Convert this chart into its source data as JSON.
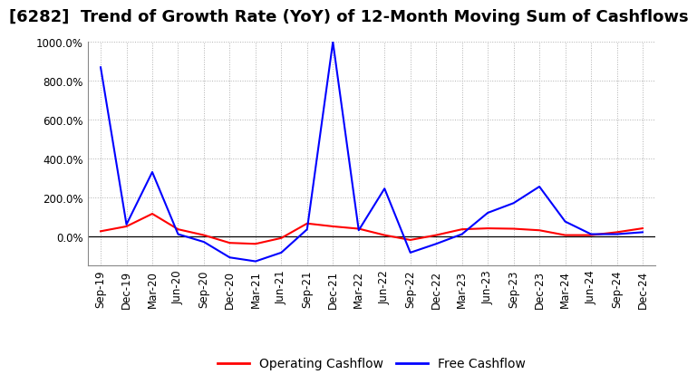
{
  "title": "[6282]  Trend of Growth Rate (YoY) of 12-Month Moving Sum of Cashflows",
  "x_labels": [
    "Sep-19",
    "Dec-19",
    "Mar-20",
    "Jun-20",
    "Sep-20",
    "Dec-20",
    "Mar-21",
    "Jun-21",
    "Sep-21",
    "Dec-21",
    "Mar-22",
    "Jun-22",
    "Sep-22",
    "Dec-22",
    "Mar-23",
    "Jun-23",
    "Sep-23",
    "Dec-23",
    "Mar-24",
    "Jun-24",
    "Sep-24",
    "Dec-24"
  ],
  "operating_cashflow": [
    25,
    50,
    115,
    35,
    5,
    -35,
    -40,
    -10,
    65,
    50,
    38,
    5,
    -20,
    5,
    35,
    40,
    38,
    30,
    5,
    5,
    20,
    40
  ],
  "free_cashflow": [
    870,
    60,
    330,
    10,
    -30,
    -110,
    -130,
    -85,
    35,
    1000,
    30,
    245,
    -85,
    -40,
    10,
    120,
    170,
    255,
    75,
    10,
    10,
    20
  ],
  "operating_color": "#ff0000",
  "free_color": "#0000ff",
  "ylim_min": -150,
  "ylim_max": 1000,
  "yticks": [
    0,
    200,
    400,
    600,
    800,
    1000
  ],
  "background_color": "#ffffff",
  "grid_color": "#b0b0b0",
  "legend_operating": "Operating Cashflow",
  "legend_free": "Free Cashflow",
  "title_fontsize": 13,
  "axis_fontsize": 8.5,
  "legend_fontsize": 10
}
